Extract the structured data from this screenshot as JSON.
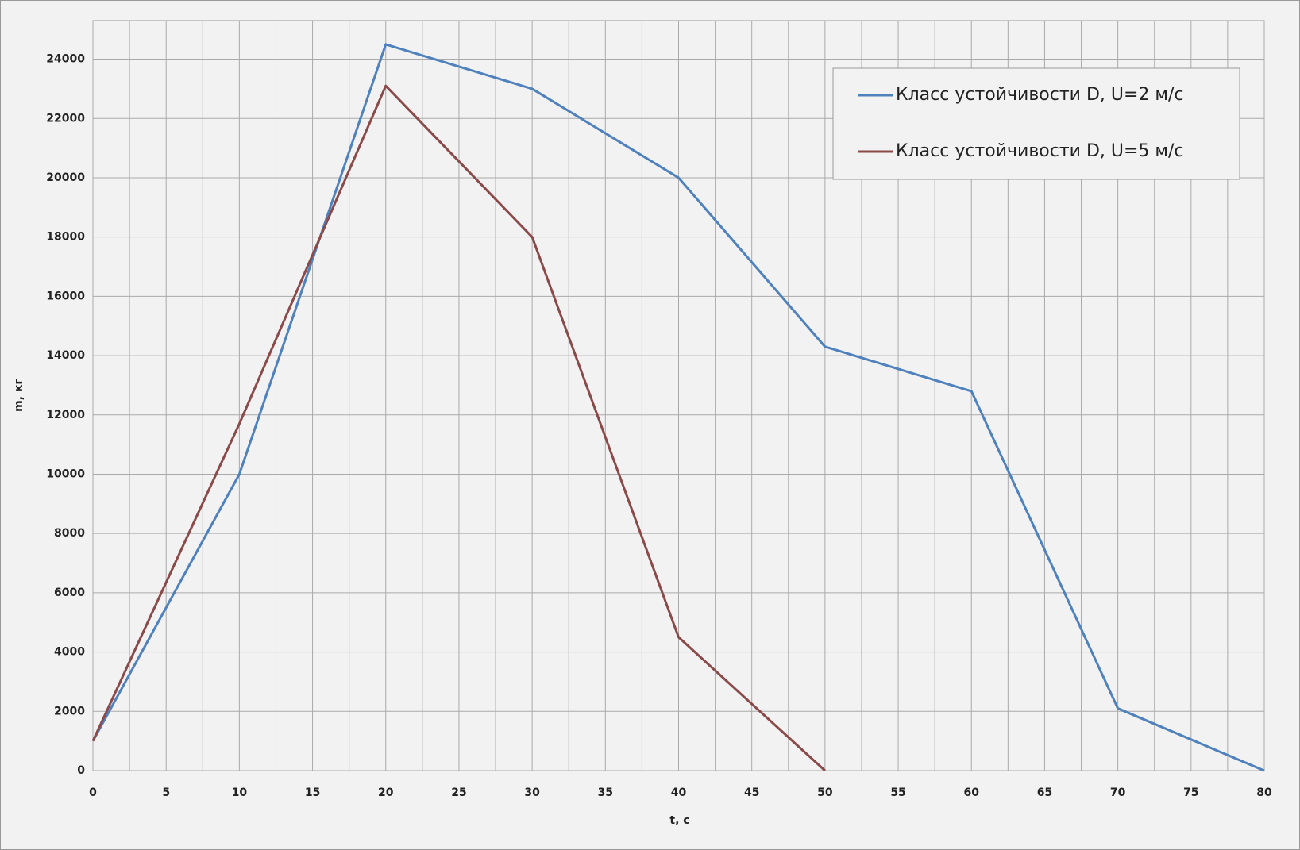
{
  "chart_data": {
    "type": "line",
    "xlabel": "t, c",
    "ylabel": "m, кг",
    "x": [
      0,
      10,
      20,
      30,
      40,
      50,
      60,
      70,
      80
    ],
    "series": [
      {
        "name": "Класс устойчивости D, U=2 м/с",
        "color": "#4f81bd",
        "values": [
          1000,
          10000,
          24500,
          23000,
          20000,
          14300,
          12800,
          2100,
          0
        ]
      },
      {
        "name": "Класс устойчивости D, U=5 м/с",
        "color": "#8b4a4a",
        "values": [
          1000,
          11700,
          23100,
          18000,
          4500,
          0,
          null,
          null,
          null
        ]
      }
    ],
    "xlim": [
      0,
      80
    ],
    "xticks": [
      0,
      5,
      10,
      15,
      20,
      25,
      30,
      35,
      40,
      45,
      50,
      55,
      60,
      65,
      70,
      75,
      80
    ],
    "ylim": [
      0,
      25300
    ],
    "yticks": [
      0,
      2000,
      4000,
      6000,
      8000,
      10000,
      12000,
      14000,
      16000,
      18000,
      20000,
      22000,
      24000
    ],
    "grid": true,
    "legend": "upper right"
  }
}
